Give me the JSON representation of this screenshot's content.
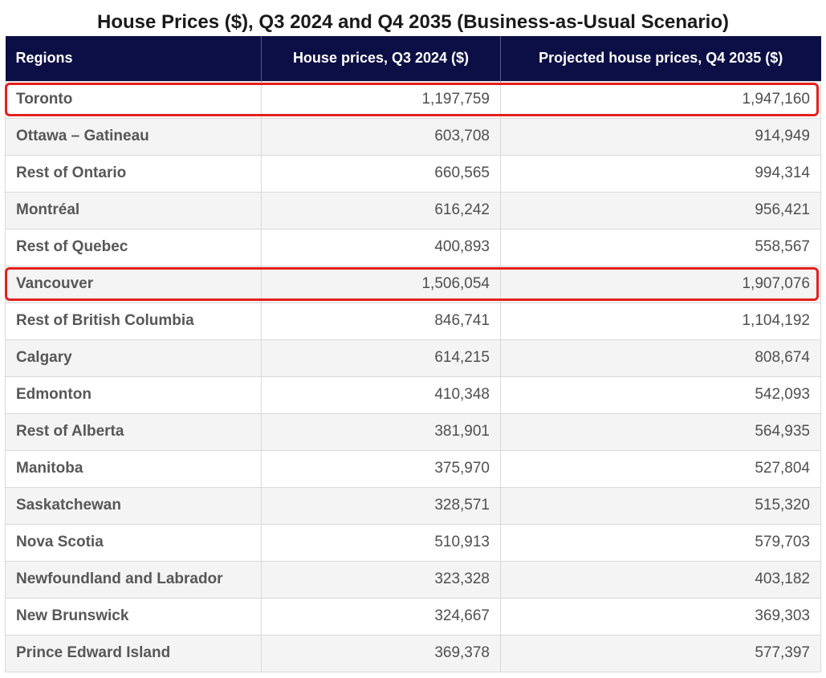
{
  "chart_data": {
    "type": "table",
    "title": "House Prices ($), Q3 2024 and Q4 2035 (Business-as-Usual Scenario)",
    "columns": [
      "Regions",
      "House prices, Q3 2024 ($)",
      "Projected house prices, Q4 2035 ($)"
    ],
    "rows": [
      [
        "Toronto",
        "1,197,759",
        "1,947,160"
      ],
      [
        "Ottawa – Gatineau",
        "603,708",
        "914,949"
      ],
      [
        "Rest of Ontario",
        "660,565",
        "994,314"
      ],
      [
        "Montréal",
        "616,242",
        "956,421"
      ],
      [
        "Rest of Quebec",
        "400,893",
        "558,567"
      ],
      [
        "Vancouver",
        "1,506,054",
        "1,907,076"
      ],
      [
        "Rest of British Columbia",
        "846,741",
        "1,104,192"
      ],
      [
        "Calgary",
        "614,215",
        "808,674"
      ],
      [
        "Edmonton",
        "410,348",
        "542,093"
      ],
      [
        "Rest of Alberta",
        "381,901",
        "564,935"
      ],
      [
        "Manitoba",
        "375,970",
        "527,804"
      ],
      [
        "Saskatchewan",
        "328,571",
        "515,320"
      ],
      [
        "Nova Scotia",
        "510,913",
        "579,703"
      ],
      [
        "Newfoundland and Labrador",
        "323,328",
        "403,182"
      ],
      [
        "New Brunswick",
        "324,667",
        "369,303"
      ],
      [
        "Prince Edward Island",
        "369,378",
        "577,397"
      ]
    ],
    "highlighted_rows": [
      "Toronto",
      "Vancouver"
    ],
    "colors": {
      "header_background": "#0c0f45",
      "header_text": "#ffffff",
      "highlight_border": "#e3201b",
      "stripe": "#f4f4f4"
    }
  }
}
